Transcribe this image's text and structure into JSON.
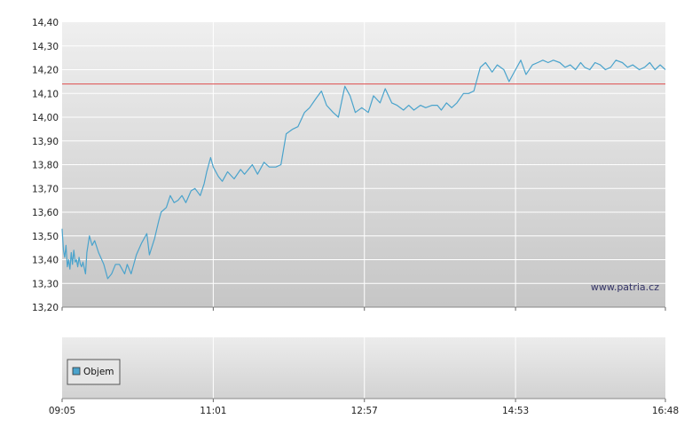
{
  "chart_data": {
    "type": "line",
    "title": "",
    "xlabel": "",
    "ylabel": "",
    "watermark": "www.patria.cz",
    "ylim": [
      13.2,
      14.4
    ],
    "y_ticks": [
      "13,20",
      "13,30",
      "13,40",
      "13,50",
      "13,60",
      "13,70",
      "13,80",
      "13,90",
      "14,00",
      "14,10",
      "14,20",
      "14,30",
      "14,40"
    ],
    "x_ticks": [
      "09:05",
      "11:01",
      "12:57",
      "14:53",
      "16:48"
    ],
    "x_range": [
      "09:05",
      "16:48"
    ],
    "reference_line": {
      "value": 14.14,
      "color": "#e06060"
    },
    "grid": true,
    "series": [
      {
        "color": "#4aa3cc",
        "x": [
          "09:05",
          "09:06",
          "09:07",
          "09:08",
          "09:09",
          "09:10",
          "09:11",
          "09:12",
          "09:13",
          "09:14",
          "09:15",
          "09:16",
          "09:17",
          "09:18",
          "09:19",
          "09:20",
          "09:21",
          "09:23",
          "09:24",
          "09:26",
          "09:28",
          "09:30",
          "09:33",
          "09:37",
          "09:40",
          "09:43",
          "09:46",
          "09:49",
          "09:53",
          "09:55",
          "09:58",
          "10:02",
          "10:06",
          "10:10",
          "10:12",
          "10:16",
          "10:19",
          "10:21",
          "10:25",
          "10:28",
          "10:31",
          "10:34",
          "10:37",
          "10:40",
          "10:44",
          "10:47",
          "10:51",
          "10:54",
          "10:56",
          "10:59",
          "11:01",
          "11:05",
          "11:08",
          "11:12",
          "11:17",
          "11:22",
          "11:25",
          "11:31",
          "11:35",
          "11:40",
          "11:44",
          "11:49",
          "11:53",
          "11:57",
          "12:02",
          "12:06",
          "12:11",
          "12:15",
          "12:20",
          "12:24",
          "12:28",
          "12:33",
          "12:37",
          "12:42",
          "12:46",
          "12:50",
          "12:55",
          "13:00",
          "13:04",
          "13:09",
          "13:13",
          "13:18",
          "13:22",
          "13:27",
          "13:31",
          "13:35",
          "13:40",
          "13:44",
          "13:49",
          "13:53",
          "13:56",
          "14:00",
          "14:04",
          "14:08",
          "14:13",
          "14:17",
          "14:21",
          "14:26",
          "14:30",
          "14:35",
          "14:39",
          "14:44",
          "14:48",
          "14:53",
          "14:57",
          "15:01",
          "15:06",
          "15:10",
          "15:14",
          "15:18",
          "15:22",
          "15:27",
          "15:31",
          "15:35",
          "15:39",
          "15:43",
          "15:46",
          "15:50",
          "15:54",
          "15:58",
          "16:02",
          "16:06",
          "16:10",
          "16:15",
          "16:19",
          "16:23",
          "16:28",
          "16:32",
          "16:36",
          "16:40",
          "16:44",
          "16:48"
        ],
        "values": [
          13.53,
          13.44,
          13.41,
          13.46,
          13.37,
          13.4,
          13.36,
          13.43,
          13.38,
          13.44,
          13.39,
          13.4,
          13.37,
          13.41,
          13.38,
          13.37,
          13.39,
          13.34,
          13.43,
          13.5,
          13.46,
          13.48,
          13.43,
          13.38,
          13.32,
          13.34,
          13.38,
          13.38,
          13.34,
          13.38,
          13.34,
          13.42,
          13.47,
          13.51,
          13.42,
          13.49,
          13.56,
          13.6,
          13.62,
          13.67,
          13.64,
          13.65,
          13.67,
          13.64,
          13.69,
          13.7,
          13.67,
          13.72,
          13.77,
          13.83,
          13.79,
          13.75,
          13.73,
          13.77,
          13.74,
          13.78,
          13.76,
          13.8,
          13.76,
          13.81,
          13.79,
          13.79,
          13.8,
          13.93,
          13.95,
          13.96,
          14.02,
          14.04,
          14.08,
          14.11,
          14.05,
          14.02,
          14.0,
          14.13,
          14.09,
          14.02,
          14.04,
          14.02,
          14.09,
          14.06,
          14.12,
          14.06,
          14.05,
          14.03,
          14.05,
          14.03,
          14.05,
          14.04,
          14.05,
          14.05,
          14.03,
          14.06,
          14.04,
          14.06,
          14.1,
          14.1,
          14.11,
          14.21,
          14.23,
          14.19,
          14.22,
          14.2,
          14.15,
          14.2,
          14.24,
          14.18,
          14.22,
          14.23,
          14.24,
          14.23,
          14.24,
          14.23,
          14.21,
          14.22,
          14.2,
          14.23,
          14.21,
          14.2,
          14.23,
          14.22,
          14.2,
          14.21,
          14.24,
          14.23,
          14.21,
          14.22,
          14.2,
          14.21,
          14.23,
          14.2,
          14.22,
          14.2
        ]
      }
    ],
    "volume_panel": {
      "legend": [
        {
          "label": "Objem",
          "color": "#4aa3cc"
        }
      ]
    }
  }
}
